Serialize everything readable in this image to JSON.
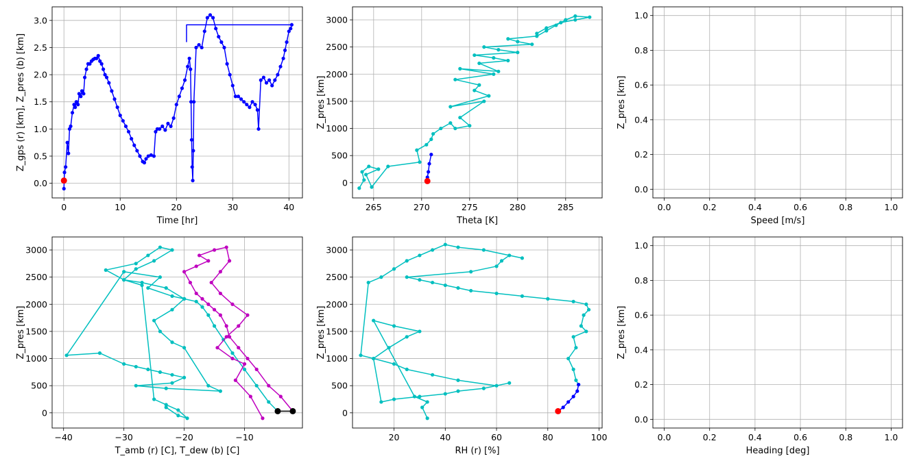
{
  "colors": {
    "blue": "#0000ff",
    "cyan": "#00bfbf",
    "magenta": "#bf00bf",
    "red": "#ff0000",
    "black": "#000000",
    "grid": "#b0b0b0"
  },
  "chart_data": [
    {
      "type": "line",
      "xlabel": "Time [hr]",
      "ylabel": "Z_gps (r) [km], Z_pres (b) [km]",
      "xlim": [
        -2.1,
        42.4
      ],
      "ylim": [
        -0.27,
        3.25
      ],
      "xticks": [
        "0",
        "10",
        "20",
        "30",
        "40"
      ],
      "xtick_values": [
        0,
        10,
        20,
        30,
        40
      ],
      "yticks": [
        "0.0",
        "0.5",
        "1.0",
        "1.5",
        "2.0",
        "2.5",
        "3.0"
      ],
      "ytick_values": [
        0,
        0.5,
        1,
        1.5,
        2,
        2.5,
        3
      ],
      "grid": true,
      "series": [
        {
          "color": "blue",
          "marker": true,
          "x": [
            0,
            0.1,
            0.3,
            0.6,
            0.8,
            1.0,
            1.2,
            1.5,
            1.8,
            2.0,
            2.2,
            2.5,
            2.7,
            3.0,
            3.2,
            3.5,
            3.7,
            4.0,
            4.3,
            4.6,
            4.9,
            5.2,
            5.5,
            5.8,
            6.1,
            6.4,
            6.7,
            7.0,
            7.3,
            7.6,
            8.0,
            8.5,
            9.0,
            9.5,
            10.0,
            10.5,
            11.0,
            11.5,
            12.0,
            12.5,
            13.0,
            13.5,
            14.0,
            14.3,
            14.6,
            15.0,
            15.5,
            16.0,
            16.3,
            16.6,
            17.0,
            17.5,
            18.0,
            18.5,
            19.0,
            19.5,
            20.0,
            20.5,
            21.0,
            21.5,
            22.0,
            22.3,
            22.5,
            22.6,
            22.7,
            22.8,
            22.9,
            23.0,
            23.1,
            23.5,
            24.0,
            24.5,
            25.0,
            25.5,
            26.0,
            26.5,
            27.0,
            27.5,
            28.0,
            28.5,
            29.0,
            29.5,
            30.0,
            30.5,
            31.0,
            31.5,
            32.0,
            32.5,
            33.0,
            33.5,
            34.0,
            34.4,
            34.6,
            35.0,
            35.5,
            36.0,
            36.5,
            37.0,
            37.5,
            38.0,
            38.5,
            39.0,
            39.3,
            39.6,
            40.0,
            40.3,
            40.5
          ],
          "y": [
            -0.1,
            0.2,
            0.3,
            0.75,
            0.55,
            1.0,
            1.05,
            1.3,
            1.45,
            1.4,
            1.5,
            1.45,
            1.65,
            1.6,
            1.7,
            1.65,
            1.95,
            2.1,
            2.2,
            2.2,
            2.25,
            2.28,
            2.3,
            2.3,
            2.35,
            2.25,
            2.2,
            2.1,
            2.0,
            1.95,
            1.85,
            1.7,
            1.55,
            1.4,
            1.25,
            1.15,
            1.05,
            0.95,
            0.82,
            0.7,
            0.6,
            0.5,
            0.4,
            0.38,
            0.45,
            0.5,
            0.52,
            0.5,
            0.95,
            1.0,
            1.0,
            1.05,
            0.98,
            1.1,
            1.05,
            1.2,
            1.45,
            1.6,
            1.75,
            1.9,
            2.15,
            2.3,
            2.1,
            1.5,
            0.8,
            0.3,
            0.05,
            0.6,
            1.5,
            2.5,
            2.55,
            2.5,
            2.8,
            3.05,
            3.1,
            3.05,
            2.85,
            2.7,
            2.6,
            2.5,
            2.2,
            2.0,
            1.8,
            1.6,
            1.6,
            1.55,
            1.5,
            1.45,
            1.4,
            1.5,
            1.45,
            1.35,
            1.0,
            1.9,
            1.95,
            1.85,
            1.9,
            1.8,
            1.9,
            2.0,
            2.15,
            2.3,
            2.45,
            2.6,
            2.8,
            2.85,
            2.92
          ]
        },
        {
          "color": "blue",
          "marker": false,
          "x": [
            40.5,
            21.8,
            21.8
          ],
          "y": [
            2.92,
            2.92,
            2.6
          ]
        },
        {
          "color": "red",
          "marker": true,
          "x": [
            0
          ],
          "y": [
            0.05
          ]
        }
      ]
    },
    {
      "type": "line",
      "xlabel": "Theta [K]",
      "ylabel": "Z_pres [km]",
      "xlim": [
        262.8,
        288.8
      ],
      "ylim": [
        -280,
        3240
      ],
      "xticks": [
        "265",
        "270",
        "275",
        "280",
        "285"
      ],
      "xtick_values": [
        265,
        270,
        275,
        280,
        285
      ],
      "yticks": [
        "0",
        "500",
        "1000",
        "1500",
        "2000",
        "2500",
        "3000"
      ],
      "ytick_values": [
        0,
        500,
        1000,
        1500,
        2000,
        2500,
        3000
      ],
      "grid": true,
      "series": [
        {
          "color": "cyan",
          "marker": true,
          "x": [
            263.5,
            264,
            263.8,
            264.5,
            265.5,
            264.2,
            264.8,
            266.5,
            269.8,
            269.5,
            270.5,
            271,
            271.2,
            272,
            273,
            273.5,
            275,
            274,
            276.5,
            273,
            277,
            275.5,
            276,
            273.5,
            277.5,
            274,
            278,
            276,
            279,
            277.5,
            275.5,
            280,
            278,
            276.5,
            281.5,
            280,
            279,
            282,
            283,
            284,
            285,
            286,
            287.5,
            286,
            284.5,
            283,
            282
          ],
          "y": [
            -100,
            50,
            200,
            300,
            250,
            150,
            -80,
            300,
            380,
            600,
            700,
            800,
            900,
            1000,
            1100,
            1000,
            1050,
            1200,
            1500,
            1400,
            1600,
            1700,
            1800,
            1900,
            2000,
            2100,
            2050,
            2200,
            2250,
            2300,
            2350,
            2400,
            2450,
            2500,
            2550,
            2600,
            2650,
            2700,
            2800,
            2900,
            3000,
            3070,
            3050,
            3000,
            2950,
            2850,
            2750
          ]
        },
        {
          "color": "blue",
          "marker": true,
          "x": [
            270.5,
            270.6,
            270.7,
            270.8,
            271
          ],
          "y": [
            30,
            100,
            200,
            350,
            520
          ]
        },
        {
          "color": "red",
          "marker": true,
          "x": [
            270.6
          ],
          "y": [
            30
          ]
        }
      ]
    },
    {
      "type": "line",
      "xlabel": "Speed [m/s]",
      "ylabel": "Z_pres [km]",
      "xlim": [
        -0.05,
        1.05
      ],
      "ylim": [
        -0.05,
        1.05
      ],
      "xticks": [
        "0.0",
        "0.2",
        "0.4",
        "0.6",
        "0.8",
        "1.0"
      ],
      "xtick_values": [
        0,
        0.2,
        0.4,
        0.6,
        0.8,
        1.0
      ],
      "yticks": [
        "0.0",
        "0.2",
        "0.4",
        "0.6",
        "0.8",
        "1.0"
      ],
      "ytick_values": [
        0,
        0.2,
        0.4,
        0.6,
        0.8,
        1.0
      ],
      "grid": true,
      "series": []
    },
    {
      "type": "line",
      "xlabel": "T_amb (r) [C], T_dew (b) [C]",
      "ylabel": "Z_pres [km]",
      "xlim": [
        -41.9,
        -0.4
      ],
      "ylim": [
        -280,
        3240
      ],
      "xticks": [
        "−40",
        "−30",
        "−20",
        "−10"
      ],
      "xtick_values": [
        -40,
        -30,
        -20,
        -10
      ],
      "yticks": [
        "0",
        "500",
        "1000",
        "1500",
        "2000",
        "2500",
        "3000"
      ],
      "ytick_values": [
        0,
        500,
        1000,
        1500,
        2000,
        2500,
        3000
      ],
      "grid": true,
      "series": [
        {
          "color": "cyan",
          "marker": true,
          "x": [
            -4.5,
            -6,
            -8,
            -10,
            -12,
            -13.5,
            -15,
            -16,
            -17,
            -18,
            -20,
            -22,
            -26,
            -24,
            -30,
            -39.5,
            -34,
            -30,
            -28,
            -26,
            -24,
            -22,
            -20,
            -22,
            -28,
            -23,
            -14,
            -16,
            -20,
            -22,
            -24,
            -25,
            -22,
            -20,
            -23,
            -27,
            -30,
            -33,
            -28,
            -26,
            -24,
            -22,
            -25,
            -28,
            -30,
            -27,
            -25,
            -23,
            -21,
            -19.5,
            -21,
            -23
          ],
          "y": [
            30,
            200,
            500,
            800,
            1100,
            1350,
            1600,
            1800,
            1950,
            2050,
            2100,
            2150,
            2300,
            2500,
            2600,
            1060,
            1100,
            900,
            850,
            800,
            750,
            700,
            650,
            550,
            500,
            450,
            400,
            500,
            1200,
            1300,
            1500,
            1700,
            1900,
            2100,
            2300,
            2400,
            2450,
            2630,
            2750,
            2900,
            3050,
            3000,
            2800,
            2650,
            2450,
            2350,
            250,
            150,
            50,
            -100,
            -50,
            100
          ]
        },
        {
          "color": "magenta",
          "marker": true,
          "x": [
            -2,
            -4,
            -6,
            -8,
            -9.5,
            -11,
            -12.5,
            -13,
            -14,
            -15,
            -16,
            -17,
            -18,
            -19,
            -20,
            -18,
            -16,
            -17.5,
            -15,
            -13,
            -12.5,
            -14,
            -15.5,
            -14,
            -12,
            -9.5,
            -11,
            -13,
            -14.5,
            -12,
            -10,
            -11.5,
            -9,
            -7
          ],
          "y": [
            30,
            300,
            500,
            800,
            1000,
            1200,
            1400,
            1600,
            1800,
            1900,
            2000,
            2100,
            2200,
            2400,
            2600,
            2700,
            2800,
            2900,
            3000,
            3050,
            2800,
            2600,
            2400,
            2200,
            2000,
            1800,
            1600,
            1400,
            1200,
            1000,
            900,
            600,
            300,
            -100
          ]
        },
        {
          "color": "black",
          "marker": true,
          "x": [
            -4.5,
            -2
          ],
          "y": [
            30,
            30
          ]
        }
      ]
    },
    {
      "type": "line",
      "xlabel": "RH (r) [%]",
      "ylabel": "Z_pres [km]",
      "xlim": [
        3.8,
        101.2
      ],
      "ylim": [
        -280,
        3240
      ],
      "xticks": [
        "20",
        "40",
        "60",
        "80",
        "100"
      ],
      "xtick_values": [
        20,
        40,
        60,
        80,
        100
      ],
      "yticks": [
        "0",
        "500",
        "1000",
        "1500",
        "2000",
        "2500",
        "3000"
      ],
      "ytick_values": [
        0,
        500,
        1000,
        1500,
        2000,
        2500,
        3000
      ],
      "grid": true,
      "series": [
        {
          "color": "cyan",
          "marker": true,
          "x": [
            92,
            91,
            90,
            88,
            91,
            90,
            95,
            93,
            94,
            96,
            95,
            90,
            80,
            70,
            60,
            50,
            45,
            40,
            35,
            30,
            25,
            50,
            60,
            62,
            65,
            70,
            55,
            45,
            40,
            35,
            30,
            25,
            20,
            15,
            10,
            7,
            12,
            20,
            25,
            35,
            45,
            60,
            65,
            55,
            45,
            40,
            30,
            20,
            15,
            12,
            18,
            25,
            30,
            20,
            12,
            28,
            33,
            31,
            33
          ],
          "y": [
            520,
            600,
            800,
            1000,
            1200,
            1400,
            1500,
            1600,
            1800,
            1900,
            2000,
            2050,
            2100,
            2150,
            2200,
            2250,
            2300,
            2350,
            2400,
            2450,
            2500,
            2600,
            2700,
            2800,
            2900,
            2850,
            3000,
            3050,
            3100,
            3000,
            2900,
            2800,
            2650,
            2500,
            2400,
            1060,
            1000,
            900,
            800,
            700,
            600,
            500,
            550,
            450,
            400,
            350,
            300,
            250,
            200,
            1000,
            1200,
            1400,
            1500,
            1600,
            1700,
            300,
            200,
            100,
            -100
          ]
        },
        {
          "color": "blue",
          "marker": true,
          "x": [
            84,
            86,
            88,
            90,
            91.5,
            92
          ],
          "y": [
            30,
            100,
            200,
            300,
            400,
            520
          ]
        },
        {
          "color": "red",
          "marker": true,
          "x": [
            84
          ],
          "y": [
            30
          ]
        }
      ]
    },
    {
      "type": "line",
      "xlabel": "Heading [deg]",
      "ylabel": "Z_pres [km]",
      "xlim": [
        -0.05,
        1.05
      ],
      "ylim": [
        -0.05,
        1.05
      ],
      "xticks": [
        "0.0",
        "0.2",
        "0.4",
        "0.6",
        "0.8",
        "1.0"
      ],
      "xtick_values": [
        0,
        0.2,
        0.4,
        0.6,
        0.8,
        1.0
      ],
      "yticks": [
        "0.0",
        "0.2",
        "0.4",
        "0.6",
        "0.8",
        "1.0"
      ],
      "ytick_values": [
        0,
        0.2,
        0.4,
        0.6,
        0.8,
        1.0
      ],
      "grid": true,
      "series": []
    }
  ]
}
